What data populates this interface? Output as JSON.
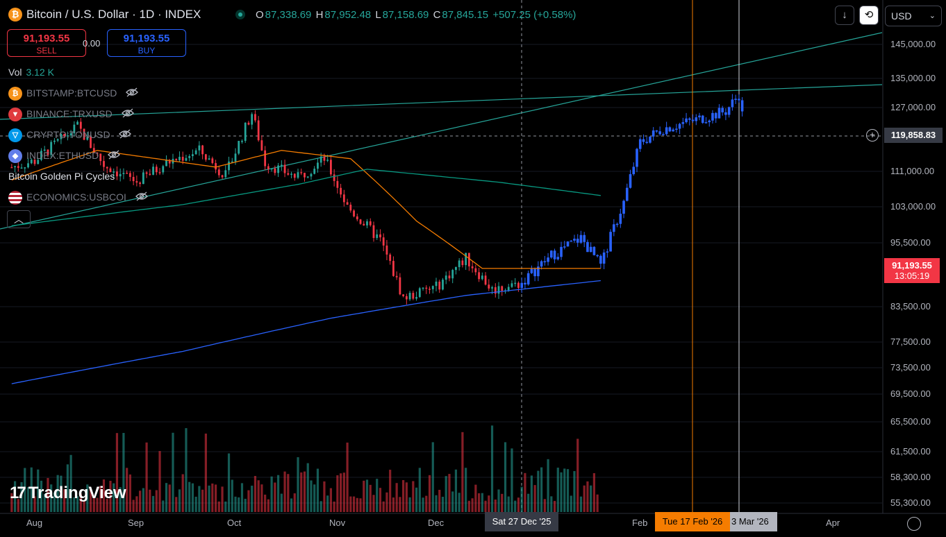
{
  "header": {
    "symbol_title": "Bitcoin / U.S. Dollar · 1D · INDEX",
    "ohlc": {
      "o_label": "O",
      "o": "87,338.69",
      "h_label": "H",
      "h": "87,952.48",
      "l_label": "L",
      "l": "87,158.69",
      "c_label": "C",
      "c": "87,845.15",
      "change": "+507.25 (+0.58%)"
    }
  },
  "trade": {
    "sell_price": "91,193.55",
    "sell_label": "SELL",
    "spread": "0.00",
    "buy_price": "91,193.55",
    "buy_label": "BUY"
  },
  "volume": {
    "label": "Vol",
    "value": "3.12 K"
  },
  "indicators": [
    {
      "name": "BITSTAMP:BTCUSD",
      "icon": "bitcoin-icon",
      "color": "#f7931a"
    },
    {
      "name": "BINANCE:TRXUSD",
      "icon": "tron-icon",
      "color": "#e03a3e"
    },
    {
      "name": "CRYPTO:TONUSD",
      "icon": "ton-icon",
      "color": "#0098ea"
    },
    {
      "name": "INDEX:ETHUSD",
      "icon": "ethereum-icon",
      "color": "#627eea"
    },
    {
      "name": "Bitcoin Golden Pi Cycles",
      "icon": "",
      "color": ""
    },
    {
      "name": "ECONOMICS:USBCOI",
      "icon": "us-flag-icon",
      "color": "#b22234"
    }
  ],
  "toolbar": {
    "currency": "USD"
  },
  "crosshair": {
    "price": "119,858.83",
    "date": "Sat 27 Dec '25"
  },
  "current_price": {
    "price": "91,193.55",
    "countdown": "13:05:19"
  },
  "time_tags": {
    "orange": "Tue 17 Feb '26",
    "white": "3 Mar '26"
  },
  "brand": "TradingView",
  "chart_data": {
    "type": "candlestick",
    "y_scale": "log",
    "y_ticks": [
      "145,000.00",
      "135,000.00",
      "127,000.00",
      "111,000.00",
      "103,000.00",
      "95,500.00",
      "83,500.00",
      "77,500.00",
      "73,500.00",
      "69,500.00",
      "65,500.00",
      "61,500.00",
      "58,300.00",
      "55,300.00"
    ],
    "x_ticks": [
      "Aug",
      "Sep",
      "Oct",
      "Nov",
      "Dec",
      "Feb",
      "Apr"
    ],
    "series": [
      {
        "kind": "price",
        "approx_path": [
          [
            "Jul 25",
            112000
          ],
          [
            "Aug 1",
            113500
          ],
          [
            "Aug 14",
            122000
          ],
          [
            "Aug 22",
            112500
          ],
          [
            "Sep 1",
            108500
          ],
          [
            "Sep 10",
            113000
          ],
          [
            "Sep 20",
            116000
          ],
          [
            "Sep 28",
            110000
          ],
          [
            "Oct 6",
            125500
          ],
          [
            "Oct 10",
            113000
          ],
          [
            "Oct 20",
            109500
          ],
          [
            "Oct 28",
            114000
          ],
          [
            "Nov 4",
            103000
          ],
          [
            "Nov 14",
            96000
          ],
          [
            "Nov 21",
            85000
          ],
          [
            "Dec 1",
            87000
          ],
          [
            "Dec 10",
            92500
          ],
          [
            "Dec 18",
            86500
          ],
          [
            "Dec 27",
            87800
          ],
          [
            "Jan 5",
            93000
          ],
          [
            "Jan 14",
            96500
          ],
          [
            "Jan 20",
            91000
          ],
          [
            "Jan 27",
            104000
          ],
          [
            "Feb 1",
            118000
          ],
          [
            "Feb 8",
            121500
          ],
          [
            "Feb 17",
            123500
          ],
          [
            "Feb 27",
            126000
          ],
          [
            "Mar 3",
            130500
          ],
          [
            "Mar 4",
            125000
          ]
        ]
      },
      {
        "kind": "moving_average_orange",
        "approx_path": [
          [
            "Jul 25",
            109000
          ],
          [
            "Aug 20",
            116000
          ],
          [
            "Sep 25",
            112000
          ],
          [
            "Oct 15",
            116000
          ],
          [
            "Nov 5",
            114000
          ],
          [
            "Nov 25",
            100000
          ],
          [
            "Dec 15",
            90500
          ],
          [
            "Jan 20",
            90500
          ]
        ]
      },
      {
        "kind": "moving_average_green",
        "approx_path": [
          [
            "Jul 25",
            99000
          ],
          [
            "Sep 15",
            103500
          ],
          [
            "Oct 20",
            108000
          ],
          [
            "Nov 10",
            111500
          ],
          [
            "Dec 20",
            108500
          ],
          [
            "Jan 20",
            105500
          ]
        ]
      },
      {
        "kind": "moving_average_blue",
        "approx_path": [
          [
            "Jul 25",
            71000
          ],
          [
            "Sep 15",
            76000
          ],
          [
            "Oct 30",
            81500
          ],
          [
            "Dec 10",
            85500
          ],
          [
            "Jan 20",
            88200
          ]
        ]
      }
    ]
  }
}
